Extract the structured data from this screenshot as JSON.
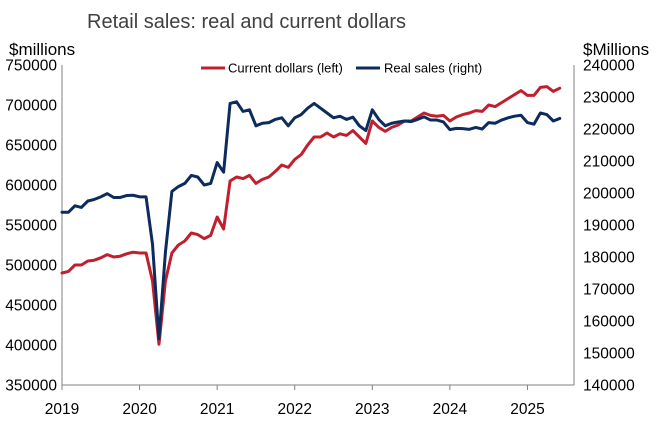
{
  "chart_data": {
    "type": "line",
    "title": "Retail sales: real and current dollars",
    "ylabel_left": "$millions",
    "ylabel_right": "$Millions",
    "xlim": [
      2019,
      2025.6
    ],
    "ylim_left": [
      350000,
      750000
    ],
    "ylim_right": [
      140000,
      240000
    ],
    "x_ticks": [
      "2019",
      "2020",
      "2021",
      "2022",
      "2023",
      "2024",
      "2025"
    ],
    "y_ticks_left": [
      "750000",
      "700000",
      "650000",
      "600000",
      "550000",
      "500000",
      "450000",
      "400000",
      "350000"
    ],
    "y_ticks_right": [
      "240000",
      "230000",
      "220000",
      "210000",
      "200000",
      "190000",
      "180000",
      "170000",
      "160000",
      "150000",
      "140000"
    ],
    "grid": false,
    "legend_position": "top-center",
    "series": [
      {
        "name": "Current dollars (left)",
        "axis": "left",
        "color": "#c0202e",
        "x": [
          "2019-01",
          "2019-02",
          "2019-03",
          "2019-04",
          "2019-05",
          "2019-06",
          "2019-07",
          "2019-08",
          "2019-09",
          "2019-10",
          "2019-11",
          "2019-12",
          "2020-01",
          "2020-02",
          "2020-03",
          "2020-04",
          "2020-05",
          "2020-06",
          "2020-07",
          "2020-08",
          "2020-09",
          "2020-10",
          "2020-11",
          "2020-12",
          "2021-01",
          "2021-02",
          "2021-03",
          "2021-04",
          "2021-05",
          "2021-06",
          "2021-07",
          "2021-08",
          "2021-09",
          "2021-10",
          "2021-11",
          "2021-12",
          "2022-01",
          "2022-02",
          "2022-03",
          "2022-04",
          "2022-05",
          "2022-06",
          "2022-07",
          "2022-08",
          "2022-09",
          "2022-10",
          "2022-11",
          "2022-12",
          "2023-01",
          "2023-02",
          "2023-03",
          "2023-04",
          "2023-05",
          "2023-06",
          "2023-07",
          "2023-08",
          "2023-09",
          "2023-10",
          "2023-11",
          "2023-12",
          "2024-01",
          "2024-02",
          "2024-03",
          "2024-04",
          "2024-05",
          "2024-06",
          "2024-07",
          "2024-08",
          "2024-09",
          "2024-10",
          "2024-11",
          "2024-12",
          "2025-01",
          "2025-02",
          "2025-03",
          "2025-04",
          "2025-05",
          "2025-06"
        ],
        "values": [
          490000,
          492000,
          500000,
          500000,
          505000,
          506000,
          509000,
          513000,
          510000,
          511000,
          514000,
          516000,
          515000,
          515000,
          480000,
          401000,
          480000,
          515000,
          525000,
          530000,
          540000,
          538000,
          533000,
          537000,
          560000,
          545000,
          605000,
          610000,
          608000,
          612000,
          602000,
          607000,
          610000,
          617000,
          625000,
          622000,
          632000,
          638000,
          650000,
          660000,
          660000,
          665000,
          660000,
          664000,
          662000,
          668000,
          660000,
          652000,
          680000,
          672000,
          667000,
          672000,
          675000,
          680000,
          680000,
          685000,
          690000,
          687000,
          686000,
          687000,
          680000,
          685000,
          688000,
          690000,
          693000,
          692000,
          700000,
          698000,
          703000,
          708000,
          713000,
          718000,
          712000,
          712000,
          722000,
          723000,
          717000,
          721000
        ]
      },
      {
        "name": "Real sales (right)",
        "axis": "right",
        "color": "#0b2c5c",
        "x": [
          "2019-01",
          "2019-02",
          "2019-03",
          "2019-04",
          "2019-05",
          "2019-06",
          "2019-07",
          "2019-08",
          "2019-09",
          "2019-10",
          "2019-11",
          "2019-12",
          "2020-01",
          "2020-02",
          "2020-03",
          "2020-04",
          "2020-05",
          "2020-06",
          "2020-07",
          "2020-08",
          "2020-09",
          "2020-10",
          "2020-11",
          "2020-12",
          "2021-01",
          "2021-02",
          "2021-03",
          "2021-04",
          "2021-05",
          "2021-06",
          "2021-07",
          "2021-08",
          "2021-09",
          "2021-10",
          "2021-11",
          "2021-12",
          "2022-01",
          "2022-02",
          "2022-03",
          "2022-04",
          "2022-05",
          "2022-06",
          "2022-07",
          "2022-08",
          "2022-09",
          "2022-10",
          "2022-11",
          "2022-12",
          "2023-01",
          "2023-02",
          "2023-03",
          "2023-04",
          "2023-05",
          "2023-06",
          "2023-07",
          "2023-08",
          "2023-09",
          "2023-10",
          "2023-11",
          "2023-12",
          "2024-01",
          "2024-02",
          "2024-03",
          "2024-04",
          "2024-05",
          "2024-06",
          "2024-07",
          "2024-08",
          "2024-09",
          "2024-10",
          "2024-11",
          "2024-12",
          "2025-01",
          "2025-02",
          "2025-03",
          "2025-04",
          "2025-05",
          "2025-06"
        ],
        "values": [
          194000,
          194000,
          196000,
          195500,
          197500,
          198000,
          198800,
          199800,
          198600,
          198600,
          199200,
          199300,
          198800,
          198800,
          184000,
          154500,
          181500,
          200500,
          202000,
          203000,
          205500,
          205000,
          202500,
          203000,
          209500,
          206500,
          228000,
          228500,
          225500,
          226000,
          221000,
          221800,
          222000,
          223000,
          223500,
          221000,
          223500,
          224500,
          226500,
          228000,
          226500,
          225000,
          223500,
          224000,
          223000,
          223700,
          221000,
          219500,
          226000,
          223000,
          221000,
          221800,
          222200,
          222500,
          222300,
          223000,
          223800,
          222800,
          222800,
          222200,
          219800,
          220200,
          220100,
          219900,
          220500,
          220000,
          222000,
          221800,
          222800,
          223500,
          224000,
          224300,
          222000,
          221500,
          225000,
          224500,
          222500,
          223300
        ]
      }
    ]
  }
}
